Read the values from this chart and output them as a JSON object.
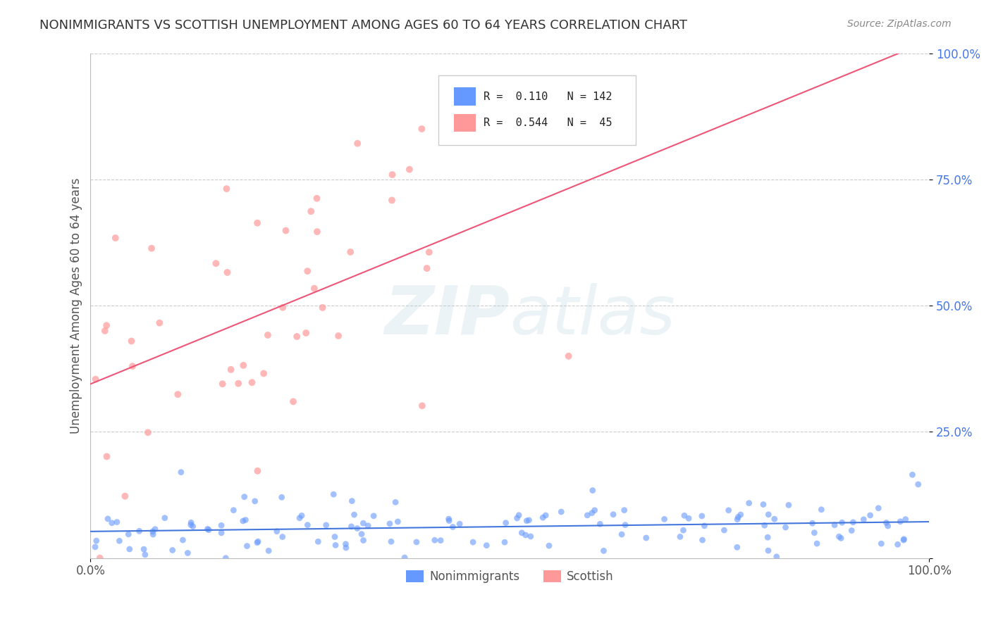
{
  "title": "NONIMMIGRANTS VS SCOTTISH UNEMPLOYMENT AMONG AGES 60 TO 64 YEARS CORRELATION CHART",
  "source": "Source: ZipAtlas.com",
  "ylabel": "Unemployment Among Ages 60 to 64 years",
  "xlim": [
    0,
    1
  ],
  "ylim": [
    0,
    1
  ],
  "blue_R": 0.11,
  "blue_N": 142,
  "pink_R": 0.544,
  "pink_N": 45,
  "blue_color": "#6699FF",
  "pink_color": "#FF9999",
  "blue_line_color": "#4477DD",
  "pink_line_color": "#EE5577",
  "background_color": "#FFFFFF",
  "grid_color": "#CCCCCC",
  "title_color": "#333333",
  "legend_label_blue": "Nonimmigrants",
  "legend_label_pink": "Scottish",
  "tick_color": "#4477EE"
}
